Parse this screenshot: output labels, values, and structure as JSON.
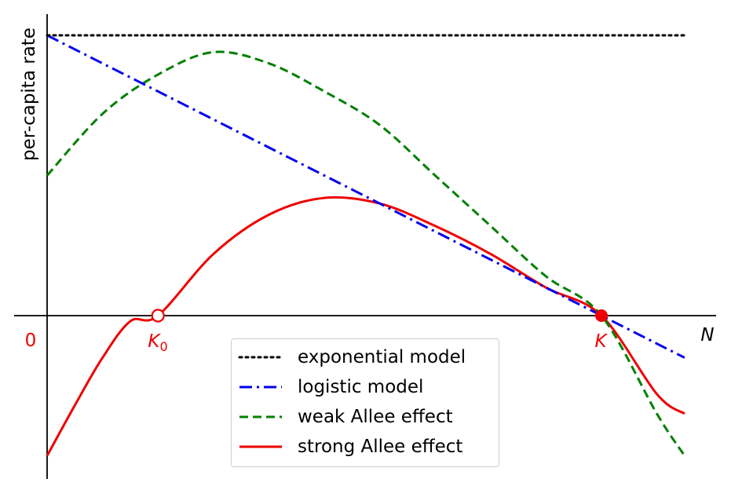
{
  "chart_data": {
    "type": "line",
    "ylabel": "per-capita rate",
    "xlabel": "N",
    "xlim": [
      0,
      1.15
    ],
    "ylim": [
      -1.05,
      1.1
    ],
    "origin_label": "0",
    "k0_label": "K",
    "k0_sub": "0",
    "k_label": "K",
    "k0": 0.2,
    "k": 1.0,
    "colors": {
      "marker": "#ee0000",
      "axis": "#000000"
    },
    "series": [
      {
        "name": "exponential model",
        "color": "#000000",
        "dash": "dotted",
        "x": [
          0,
          1.15
        ],
        "y": [
          1,
          1
        ]
      },
      {
        "name": "logistic model",
        "color": "#0000ee",
        "dash": "dashdot",
        "x": [
          0,
          1.15
        ],
        "y": [
          1,
          -0.15
        ]
      },
      {
        "name": "weak Allee effect",
        "color": "#008000",
        "dash": "dashed",
        "x": [
          0,
          0.1,
          0.2,
          0.3,
          0.4,
          0.5,
          0.6,
          0.7,
          0.8,
          0.9,
          1.0,
          1.1,
          1.15
        ],
        "y": [
          0.5,
          0.72,
          0.86,
          0.94,
          0.9,
          0.8,
          0.68,
          0.5,
          0.32,
          0.14,
          0,
          -0.35,
          -0.5
        ]
      },
      {
        "name": "strong Allee effect",
        "color": "#ee0000",
        "dash": "solid",
        "x": [
          0,
          0.05,
          0.1,
          0.15,
          0.2,
          0.3,
          0.4,
          0.5,
          0.6,
          0.7,
          0.8,
          0.9,
          1.0,
          1.1,
          1.15
        ],
        "y": [
          -0.5,
          -0.32,
          -0.15,
          -0.02,
          0,
          0.22,
          0.36,
          0.42,
          0.4,
          0.32,
          0.22,
          0.1,
          0,
          -0.28,
          -0.35
        ]
      }
    ]
  }
}
